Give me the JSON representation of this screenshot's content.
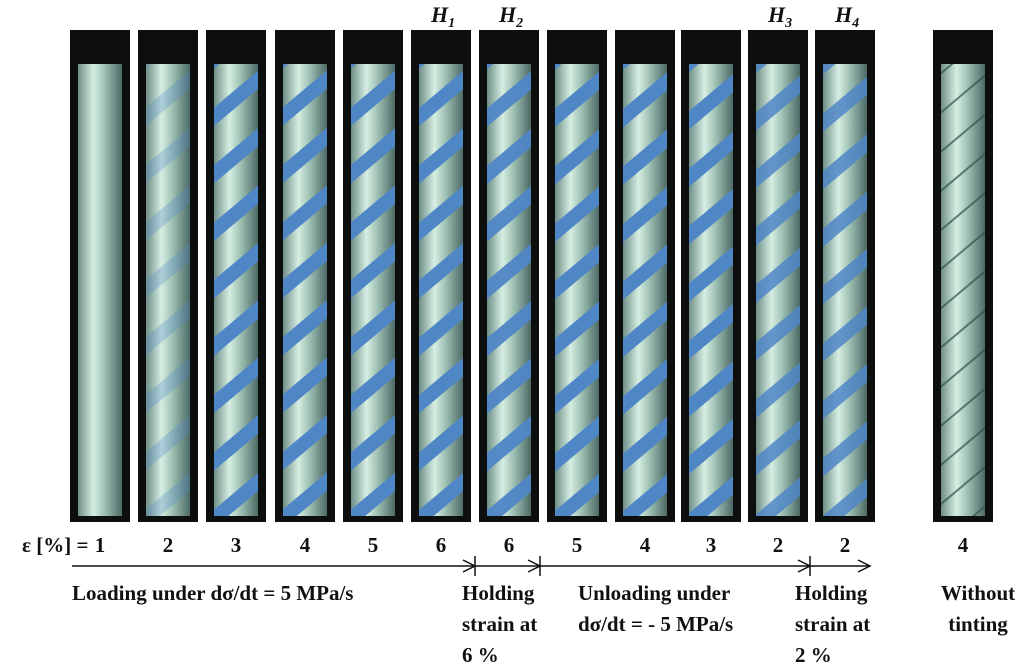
{
  "panels": [
    {
      "strain": 1,
      "marker": null
    },
    {
      "strain": 2,
      "marker": null
    },
    {
      "strain": 3,
      "marker": null
    },
    {
      "strain": 4,
      "marker": null
    },
    {
      "strain": 5,
      "marker": null
    },
    {
      "strain": 6,
      "marker": {
        "letter": "H",
        "sub": "1"
      }
    },
    {
      "strain": 6,
      "marker": {
        "letter": "H",
        "sub": "2"
      }
    },
    {
      "strain": 5,
      "marker": null
    },
    {
      "strain": 4,
      "marker": null
    },
    {
      "strain": 3,
      "marker": null
    },
    {
      "strain": 2,
      "marker": {
        "letter": "H",
        "sub": "3"
      }
    },
    {
      "strain": 2,
      "marker": {
        "letter": "H",
        "sub": "4"
      }
    },
    {
      "strain": 4,
      "marker": null
    }
  ],
  "strain_label": "ε [%] =",
  "phases": [
    {
      "lines": [
        "Loading under dσ/dt = 5 MPa/s"
      ]
    },
    {
      "lines": [
        "Holding",
        "strain at",
        "6 %"
      ]
    },
    {
      "lines": [
        "Unloading under",
        "dσ/dt = - 5 MPa/s"
      ]
    },
    {
      "lines": [
        "Holding",
        "strain at",
        "2 %"
      ]
    },
    {
      "lines": [
        "Without",
        "tinting"
      ]
    }
  ]
}
